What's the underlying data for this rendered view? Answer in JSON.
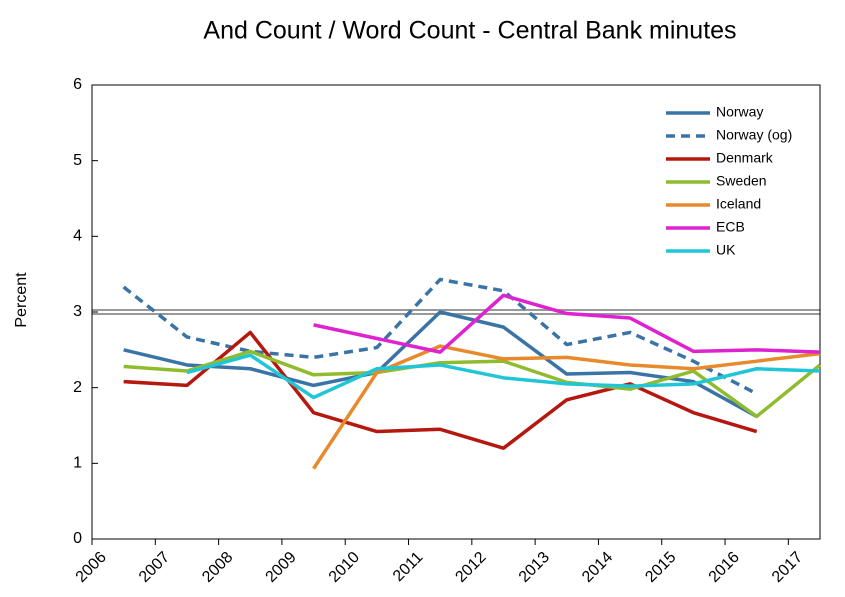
{
  "chart_data": {
    "type": "line",
    "title": "And Count / Word Count - Central Bank minutes",
    "y_label": "Percent",
    "x": [
      2006.5,
      2007.5,
      2008.5,
      2009.5,
      2010.5,
      2011.5,
      2012.5,
      2013.5,
      2014.5,
      2015.5,
      2016.5,
      2017.5
    ],
    "xlim": [
      2006,
      2017.5
    ],
    "xticks": [
      2006,
      2007,
      2008,
      2009,
      2010,
      2011,
      2012,
      2013,
      2014,
      2015,
      2016,
      2017
    ],
    "ylim": [
      0,
      6
    ],
    "yticks": [
      0,
      1,
      2,
      3,
      4,
      5,
      6
    ],
    "reference_line": 3,
    "legend": "top-right",
    "series": [
      {
        "name": "Norway",
        "color": "#3a73a6",
        "values": [
          2.5,
          2.3,
          2.25,
          2.03,
          2.2,
          3.0,
          2.8,
          2.18,
          2.2,
          2.08,
          1.62,
          null
        ]
      },
      {
        "name": "Norway (og)",
        "color": "#3a73a6",
        "dashed": true,
        "values": [
          3.33,
          2.67,
          2.48,
          2.4,
          2.53,
          3.43,
          3.28,
          2.57,
          2.73,
          2.35,
          1.92,
          null
        ]
      },
      {
        "name": "Denmark",
        "color": "#b5180f",
        "values": [
          2.08,
          2.03,
          2.73,
          1.67,
          1.42,
          1.45,
          1.2,
          1.84,
          2.05,
          1.67,
          1.42,
          null
        ]
      },
      {
        "name": "Sweden",
        "color": "#8fbc2f",
        "values": [
          2.28,
          2.22,
          2.48,
          2.17,
          2.2,
          2.33,
          2.35,
          2.07,
          1.98,
          2.22,
          1.62,
          2.3
        ]
      },
      {
        "name": "Iceland",
        "color": "#e88a2c",
        "values": [
          null,
          null,
          null,
          0.93,
          2.2,
          2.55,
          2.38,
          2.4,
          2.3,
          2.25,
          2.35,
          2.45
        ]
      },
      {
        "name": "ECB",
        "color": "#de22d0",
        "values": [
          null,
          null,
          null,
          2.83,
          2.65,
          2.47,
          3.22,
          2.98,
          2.92,
          2.48,
          2.5,
          2.47
        ]
      },
      {
        "name": "UK",
        "color": "#21c6d6",
        "values": [
          null,
          2.2,
          2.43,
          1.87,
          2.25,
          2.3,
          2.13,
          2.05,
          2.02,
          2.05,
          2.25,
          2.22
        ]
      }
    ]
  }
}
